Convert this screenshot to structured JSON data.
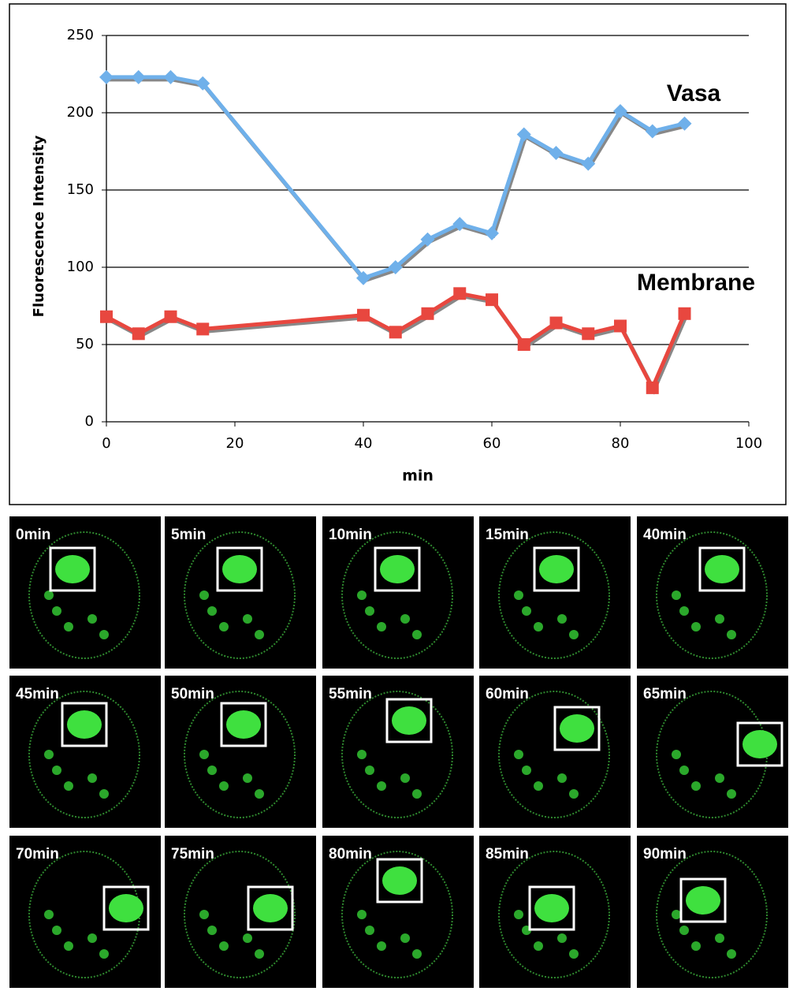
{
  "chart_data": {
    "type": "line",
    "x_label": "min",
    "y_label": "Fluorescence Intensity",
    "x": [
      0,
      5,
      10,
      15,
      40,
      45,
      50,
      55,
      60,
      65,
      70,
      75,
      80,
      85,
      90
    ],
    "series": [
      {
        "name": "Vasa",
        "color": "#6fb0ea",
        "marker": "diamond",
        "values": [
          223,
          223,
          223,
          219,
          93,
          100,
          118,
          128,
          122,
          186,
          174,
          167,
          201,
          188,
          193
        ]
      },
      {
        "name": "Membrane",
        "color": "#e8473f",
        "marker": "square",
        "values": [
          68,
          57,
          68,
          60,
          69,
          58,
          70,
          83,
          79,
          50,
          64,
          57,
          62,
          22,
          70
        ]
      }
    ],
    "xlim": [
      0,
      100
    ],
    "xticks": [
      0,
      20,
      40,
      60,
      80,
      100
    ],
    "ylim": [
      0,
      250
    ],
    "yticks": [
      0,
      50,
      100,
      150,
      200,
      250
    ],
    "grid": true
  },
  "panels": [
    {
      "label": "0min"
    },
    {
      "label": "5min"
    },
    {
      "label": "10min"
    },
    {
      "label": "15min"
    },
    {
      "label": "40min"
    },
    {
      "label": "45min"
    },
    {
      "label": "50min"
    },
    {
      "label": "55min"
    },
    {
      "label": "60min"
    },
    {
      "label": "65min"
    },
    {
      "label": "70min"
    },
    {
      "label": "75min"
    },
    {
      "label": "80min"
    },
    {
      "label": "85min"
    },
    {
      "label": "90min"
    }
  ]
}
